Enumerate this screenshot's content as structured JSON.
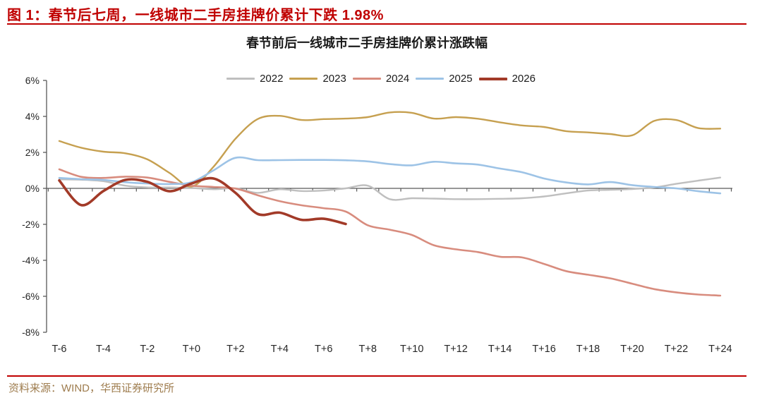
{
  "header": {
    "figure_title": "图 1：春节后七周，一线城市二手房挂牌价累计下跌 1.98%"
  },
  "footer": {
    "source": "资料来源：WIND，华西证券研究所"
  },
  "colors": {
    "header_red": "#C00000",
    "rule_red": "#C00000",
    "footer_text": "#9E7C4E",
    "axis": "#595959",
    "tick_label": "#262626"
  },
  "chart_data": {
    "type": "line",
    "title": "春节前后一线城市二手房挂牌价累计涨跌幅",
    "xlabel": "",
    "ylabel": "",
    "x_week_start": -6,
    "x_week_end": 24,
    "x_tick_labels": [
      "T-6",
      "T-4",
      "T-2",
      "T+0",
      "T+2",
      "T+4",
      "T+6",
      "T+8",
      "T+10",
      "T+12",
      "T+14",
      "T+16",
      "T+18",
      "T+20",
      "T+22",
      "T+24"
    ],
    "x_tick_step_weeks": 2,
    "y_ticks_pct": [
      6,
      4,
      2,
      0,
      -2,
      -4,
      -6,
      -8
    ],
    "y_tick_suffix": "%",
    "ylim": [
      -8,
      6
    ],
    "grid": false,
    "legend_position": "top-center",
    "smoothed_lines": true,
    "series": [
      {
        "name": "2022",
        "color": "#BFBFBF",
        "width": 2.4,
        "start_week": -6,
        "values": [
          0.5,
          0.48,
          0.4,
          0.15,
          0.05,
          0.05,
          0.02,
          -0.05,
          0.0,
          -0.25,
          -0.05,
          -0.15,
          -0.12,
          0.0,
          0.15,
          -0.6,
          -0.55,
          -0.57,
          -0.6,
          -0.6,
          -0.58,
          -0.55,
          -0.45,
          -0.28,
          -0.12,
          -0.08,
          -0.04,
          0.05,
          0.25,
          0.43,
          0.6
        ]
      },
      {
        "name": "2023",
        "color": "#C6A050",
        "width": 2.4,
        "start_week": -6,
        "values": [
          2.63,
          2.26,
          2.04,
          1.95,
          1.61,
          0.86,
          0.1,
          1.2,
          2.76,
          3.85,
          4.03,
          3.8,
          3.85,
          3.88,
          3.96,
          4.22,
          4.2,
          3.88,
          3.96,
          3.87,
          3.67,
          3.5,
          3.41,
          3.18,
          3.11,
          3.02,
          2.95,
          3.75,
          3.8,
          3.35,
          3.32
        ]
      },
      {
        "name": "2024",
        "color": "#D88C7E",
        "width": 2.6,
        "start_week": -6,
        "values": [
          1.06,
          0.64,
          0.58,
          0.65,
          0.6,
          0.36,
          0.15,
          0.08,
          -0.01,
          -0.38,
          -0.71,
          -0.94,
          -1.1,
          -1.29,
          -2.05,
          -2.3,
          -2.59,
          -3.16,
          -3.39,
          -3.54,
          -3.8,
          -3.84,
          -4.2,
          -4.6,
          -4.8,
          -5.0,
          -5.3,
          -5.6,
          -5.78,
          -5.9,
          -5.96
        ]
      },
      {
        "name": "2025",
        "color": "#9DC3E6",
        "width": 2.6,
        "start_week": -6,
        "values": [
          0.58,
          0.51,
          0.47,
          0.34,
          0.27,
          0.24,
          0.34,
          1.0,
          1.7,
          1.57,
          1.57,
          1.58,
          1.58,
          1.56,
          1.5,
          1.35,
          1.28,
          1.48,
          1.39,
          1.32,
          1.1,
          0.9,
          0.55,
          0.33,
          0.22,
          0.35,
          0.18,
          0.08,
          0.0,
          -0.16,
          -0.28
        ]
      },
      {
        "name": "2026",
        "color": "#A23A28",
        "width": 3.6,
        "start_week": -6,
        "values": [
          0.44,
          -0.93,
          -0.15,
          0.47,
          0.36,
          -0.16,
          0.27,
          0.55,
          -0.25,
          -1.42,
          -1.35,
          -1.75,
          -1.69,
          -1.98
        ]
      }
    ],
    "annotation": "2026 line ends at T+7 (seven weeks after Spring Festival), cumulative -1.98%"
  }
}
